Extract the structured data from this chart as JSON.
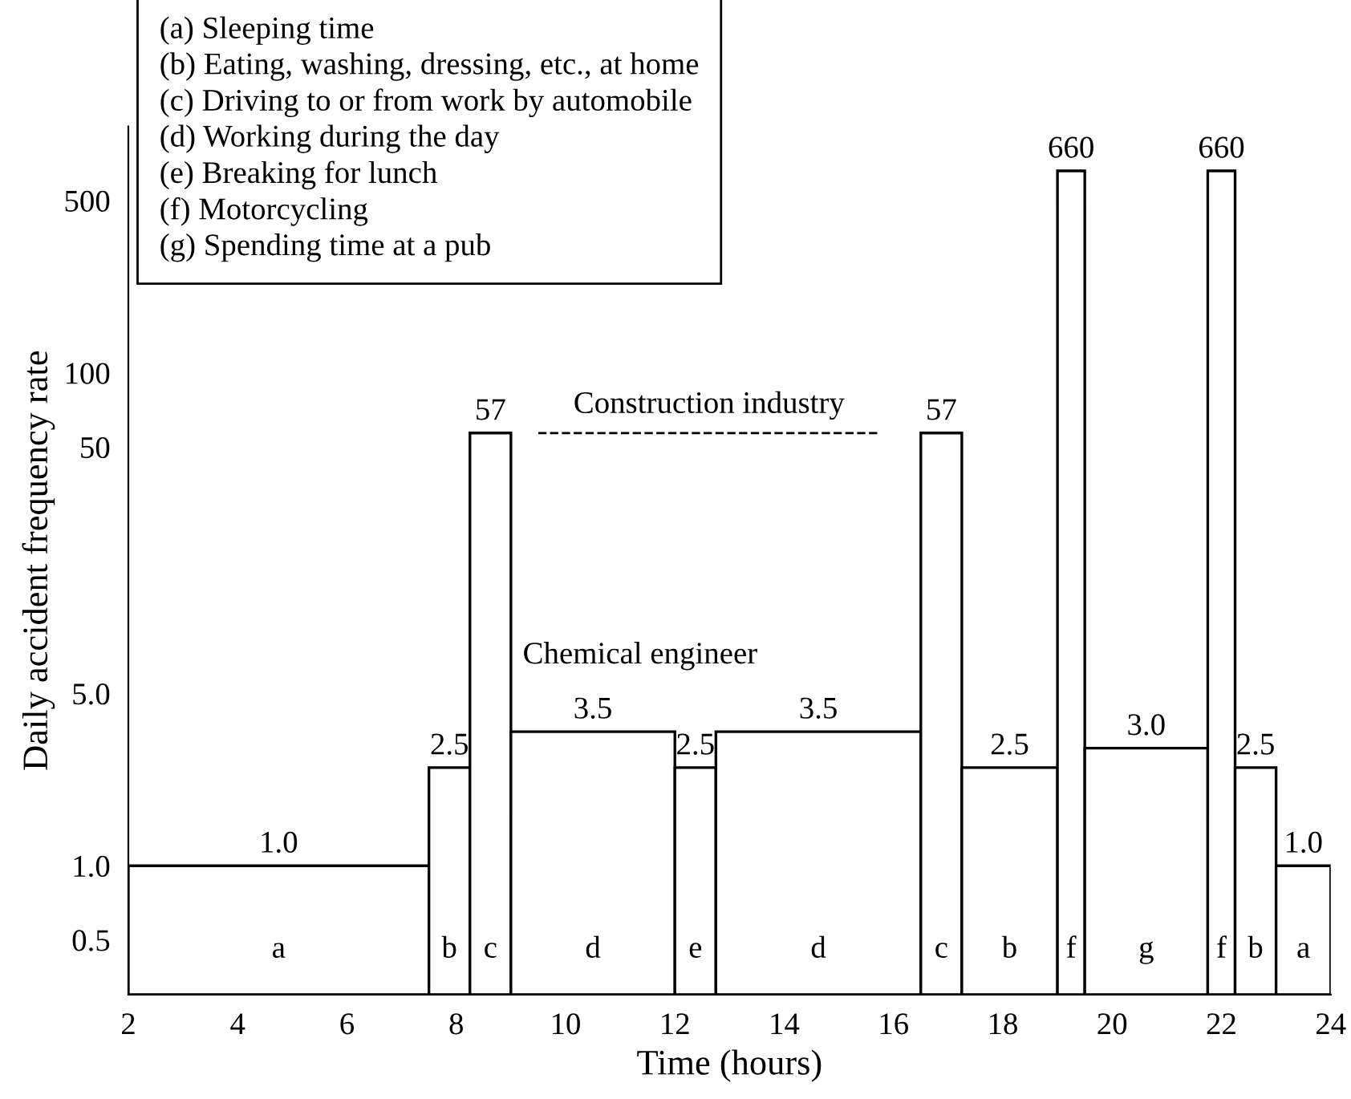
{
  "chart_data": {
    "type": "histogram",
    "xlabel": "Time (hours)",
    "ylabel": "Daily accident frequency rate",
    "categories": [
      "a",
      "b",
      "c",
      "d",
      "e",
      "d",
      "c",
      "b",
      "f",
      "g",
      "f",
      "b",
      "a"
    ],
    "bins": [
      2,
      7.5,
      8.25,
      9,
      12,
      12.75,
      16.5,
      17.25,
      19,
      19.5,
      21.75,
      22.25,
      23,
      24
    ],
    "values": [
      1.0,
      2.5,
      57,
      3.5,
      2.5,
      3.5,
      57,
      2.5,
      660,
      3.0,
      660,
      2.5,
      1.0
    ],
    "value_labels": [
      "1.0",
      "2.5",
      "57",
      "3.5",
      "2.5",
      "3.5",
      "57",
      "2.5",
      "660",
      "3.0",
      "660",
      "2.5",
      "1.0"
    ],
    "color": "#ffffff",
    "series": [
      {
        "name": "Construction industry",
        "type": "line",
        "line_style": "dashed",
        "color": "#000000",
        "x": [
          9.5,
          15.75
        ],
        "values": [
          57,
          57
        ]
      }
    ],
    "log": true,
    "xlim": [
      2,
      24
    ],
    "xticks": [
      2,
      4,
      6,
      8,
      10,
      12,
      14,
      16,
      18,
      20,
      22,
      24
    ],
    "ylim": [
      0.3,
      1000
    ],
    "yticks": [
      {
        "value": 0.5,
        "label": "0.5"
      },
      {
        "value": 1,
        "label": "1.0"
      },
      {
        "value": 5,
        "label": "5.0"
      },
      50,
      100,
      500
    ],
    "grid": false,
    "annotations": [
      "Chemical engineer",
      "(a) Sleeping time\n(b) Eating, washing, dressing, etc., at home\n(c) Driving to or from work by automobile\n(d) Working during the day\n(e) Breaking for lunch\n(f) Motorcycling\n(g) Spending time at a pub"
    ]
  }
}
